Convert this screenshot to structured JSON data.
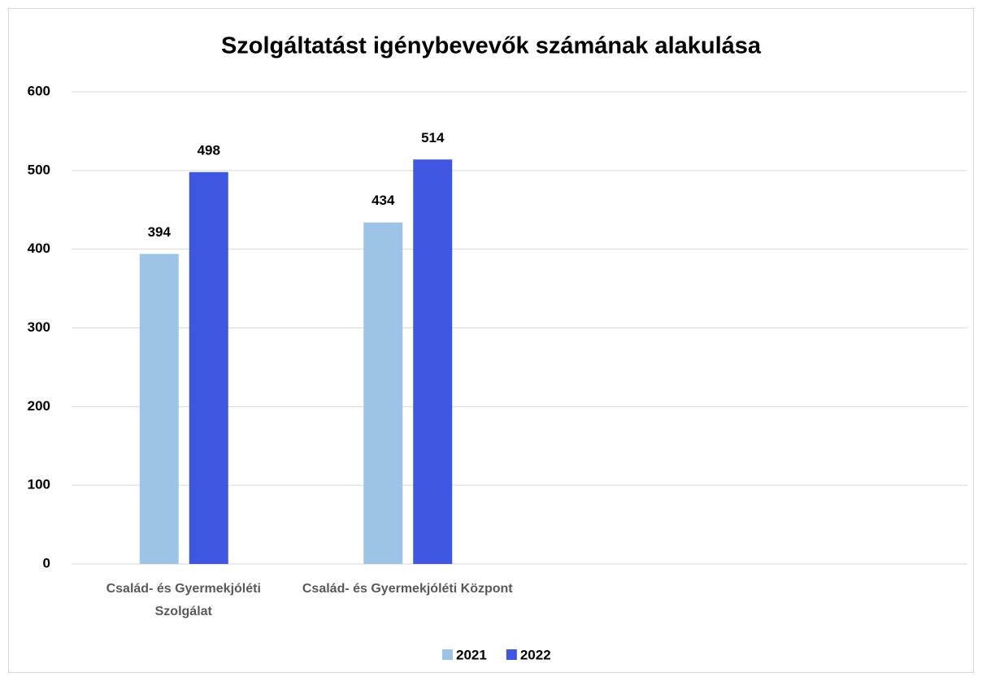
{
  "chart_data": {
    "type": "bar",
    "title": "Szolgáltatást igénybevevők számának alakulása",
    "categories": [
      "Család- és Gyermekjóléti Szolgálat",
      "Család- és Gyermekjóléti Központ",
      null,
      null
    ],
    "series": [
      {
        "name": "2021",
        "color": "#9dc3e6",
        "values": [
          394,
          434,
          null,
          null
        ]
      },
      {
        "name": "2022",
        "color": "#3f56e0",
        "values": [
          498,
          514,
          null,
          null
        ]
      }
    ],
    "ylim": [
      0,
      600
    ],
    "yticks": [
      0,
      100,
      200,
      300,
      400,
      500,
      600
    ],
    "grid": true,
    "legend": "bottom"
  }
}
